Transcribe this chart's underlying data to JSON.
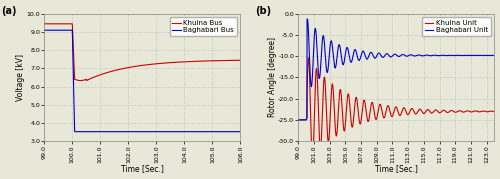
{
  "fig_width": 5.0,
  "fig_height": 1.79,
  "dpi": 100,
  "plot_a": {
    "xlabel": "Time [Sec.]",
    "ylabel": "Voltage [kV]",
    "xlim": [
      99.0,
      106.0
    ],
    "ylim": [
      3.0,
      10.0
    ],
    "xticks": [
      99,
      100,
      101,
      102,
      103,
      104,
      105,
      106
    ],
    "xtick_labels": [
      "99.0",
      "100.0",
      "101.0",
      "102.0",
      "103.0",
      "104.0",
      "105.0",
      "106.0"
    ],
    "yticks": [
      3.0,
      4.0,
      5.0,
      6.0,
      7.0,
      8.0,
      9.0,
      10.0
    ],
    "ytick_labels": [
      "3.0",
      "4.0",
      "5.0",
      "6.0",
      "7.0",
      "8.0",
      "9.0",
      "10.0"
    ],
    "label_a": "(a)",
    "legend": [
      "Khulna Bus",
      "Baghabari Bus"
    ],
    "line_colors": [
      "#cc0000",
      "#0000cc"
    ]
  },
  "plot_b": {
    "xlabel": "Time [Sec.]",
    "ylabel": "Rotor Angle [degree]",
    "xlim": [
      99.0,
      124.0
    ],
    "ylim": [
      -30.0,
      0.0
    ],
    "xticks": [
      99,
      101,
      103,
      105,
      107,
      109,
      111,
      113,
      115,
      117,
      119,
      121,
      123
    ],
    "xtick_labels": [
      "99.0",
      "101.0",
      "103.0",
      "105.0",
      "107.0",
      "109.0",
      "111.0",
      "113.0",
      "115.0",
      "117.0",
      "119.0",
      "121.0",
      "123.0"
    ],
    "yticks": [
      0.0,
      -5.0,
      -10.0,
      -15.0,
      -20.0,
      -25.0,
      -30.0
    ],
    "ytick_labels": [
      "0.0",
      "-5.0",
      "-10.0",
      "-15.0",
      "-20.0",
      "-25.0",
      "-30.0"
    ],
    "label_b": "(b)",
    "legend": [
      "Khulna Unit",
      "Baghabari Unit"
    ],
    "line_colors": [
      "#cc0000",
      "#0000cc"
    ]
  },
  "grid_color": "#bbbbbb",
  "grid_linestyle": ":",
  "grid_linewidth": 0.6,
  "bg_color": "#e8e8d8",
  "face_color": "#e8e8d8",
  "tick_fontsize": 4.5,
  "label_fontsize": 5.5,
  "legend_fontsize": 5,
  "panel_label_fontsize": 7,
  "line_width": 0.8,
  "spine_color": "#888888"
}
